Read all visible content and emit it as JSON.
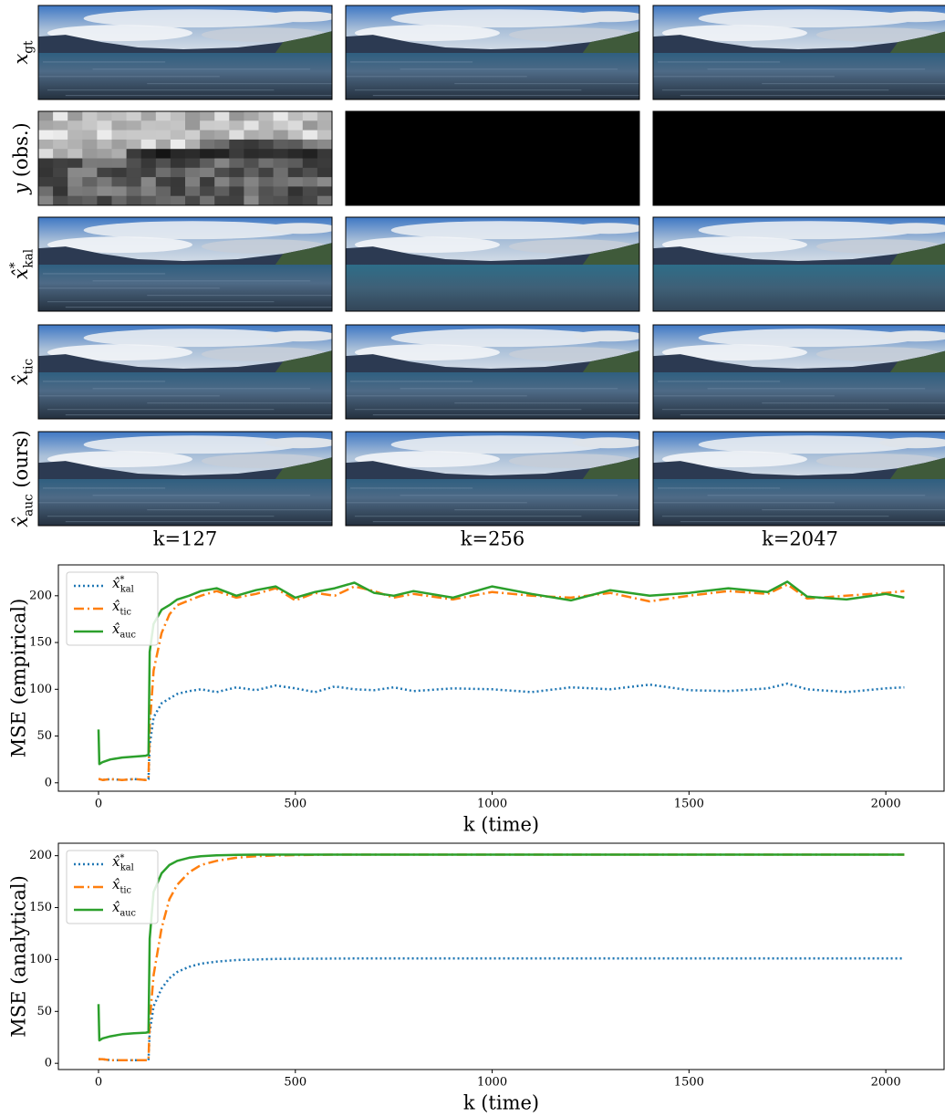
{
  "image_grid": {
    "row_labels": [
      {
        "base": "x",
        "sub": "gt"
      },
      {
        "base": "y",
        "rest": " (obs.)"
      },
      {
        "base": "x̂",
        "sup": "*",
        "sub": "kal"
      },
      {
        "base": "x̂",
        "sub": "tic"
      },
      {
        "base": "x̂",
        "sub": "auc",
        "rest": " (ours)"
      }
    ],
    "column_labels": [
      "k=127",
      "k=256",
      "k=2047"
    ]
  },
  "chart_data": [
    {
      "type": "line",
      "ylabel": "MSE (empirical)",
      "xlabel": "k (time)",
      "x": [
        0,
        2,
        10,
        30,
        60,
        90,
        120,
        127,
        130,
        140,
        160,
        180,
        200,
        230,
        260,
        300,
        350,
        400,
        450,
        500,
        550,
        600,
        650,
        700,
        750,
        800,
        900,
        1000,
        1100,
        1200,
        1300,
        1400,
        1500,
        1600,
        1700,
        1750,
        1800,
        1900,
        2000,
        2047
      ],
      "xlim": [
        -102,
        2148
      ],
      "xticks": [
        0,
        500,
        1000,
        1500,
        2000
      ],
      "ylim": [
        -9,
        233
      ],
      "yticks": [
        0,
        50,
        100,
        150,
        200
      ],
      "legend": "upper left",
      "series": [
        {
          "name": {
            "base": "x̂",
            "sup": "*",
            "sub": "kal"
          },
          "color": "#1f77b4",
          "style": "dotted",
          "values": [
            4,
            4,
            3,
            4,
            3,
            4,
            3,
            4,
            40,
            70,
            85,
            90,
            95,
            98,
            100,
            97,
            102,
            99,
            104,
            101,
            97,
            103,
            100,
            99,
            102,
            98,
            101,
            100,
            97,
            102,
            100,
            105,
            99,
            98,
            101,
            106,
            100,
            97,
            101,
            102
          ]
        },
        {
          "name": {
            "base": "x̂",
            "sub": "tic"
          },
          "color": "#ff7f0e",
          "style": "dashdot",
          "values": [
            4,
            4,
            3,
            4,
            3,
            4,
            3,
            4,
            60,
            120,
            160,
            180,
            190,
            195,
            200,
            205,
            198,
            202,
            208,
            195,
            203,
            200,
            210,
            205,
            198,
            202,
            196,
            204,
            200,
            198,
            203,
            194,
            200,
            205,
            202,
            212,
            197,
            200,
            203,
            205
          ]
        },
        {
          "name": {
            "base": "x̂",
            "sub": "auc"
          },
          "color": "#2ca02c",
          "style": "solid",
          "values": [
            57,
            20,
            22,
            25,
            27,
            28,
            29,
            30,
            140,
            170,
            185,
            190,
            196,
            200,
            205,
            208,
            200,
            206,
            210,
            198,
            204,
            208,
            214,
            203,
            200,
            205,
            198,
            210,
            202,
            195,
            206,
            200,
            203,
            208,
            204,
            215,
            199,
            196,
            202,
            198
          ]
        }
      ]
    },
    {
      "type": "line",
      "ylabel": "MSE (analytical)",
      "xlabel": "k (time)",
      "x": [
        0,
        2,
        10,
        30,
        60,
        90,
        120,
        127,
        130,
        140,
        160,
        180,
        200,
        230,
        260,
        300,
        350,
        400,
        450,
        500,
        550,
        600,
        650,
        700,
        750,
        800,
        900,
        1000,
        1100,
        1200,
        1300,
        1400,
        1500,
        1600,
        1700,
        1750,
        1800,
        1900,
        2000,
        2047
      ],
      "xlim": [
        -102,
        2148
      ],
      "xticks": [
        0,
        500,
        1000,
        1500,
        2000
      ],
      "ylim": [
        -6,
        212
      ],
      "yticks": [
        0,
        50,
        100,
        150,
        200
      ],
      "legend": "upper left",
      "series": [
        {
          "name": {
            "base": "x̂",
            "sup": "*",
            "sub": "kal"
          },
          "color": "#1f77b4",
          "style": "dotted",
          "values": [
            4,
            4,
            4,
            3,
            3,
            3,
            3,
            3,
            30,
            55,
            72,
            82,
            88,
            93,
            96,
            98,
            99.5,
            100,
            100.5,
            100.7,
            100.8,
            100.9,
            101,
            101,
            101,
            101,
            101,
            101,
            101,
            101,
            101,
            101,
            101,
            101,
            101,
            101,
            101,
            101,
            101,
            101
          ]
        },
        {
          "name": {
            "base": "x̂",
            "sub": "tic"
          },
          "color": "#ff7f0e",
          "style": "dashdot",
          "values": [
            4,
            4,
            4,
            3,
            3,
            3,
            3,
            3,
            40,
            85,
            130,
            158,
            172,
            184,
            191,
            195,
            198,
            199.5,
            200.2,
            200.6,
            200.8,
            201,
            201,
            201,
            201,
            201,
            201,
            201,
            201,
            201,
            201,
            201,
            201,
            201,
            201,
            201,
            201,
            201,
            201,
            201
          ]
        },
        {
          "name": {
            "base": "x̂",
            "sub": "auc"
          },
          "color": "#2ca02c",
          "style": "solid",
          "values": [
            57,
            22,
            24,
            26,
            28,
            29,
            29.5,
            30,
            120,
            165,
            183,
            191,
            195,
            198,
            199.5,
            200.3,
            200.8,
            201,
            201,
            201,
            201,
            201,
            201,
            201,
            201,
            201,
            201,
            201,
            201,
            201,
            201,
            201,
            201,
            201,
            201,
            201,
            201,
            201,
            201,
            201
          ]
        }
      ]
    }
  ]
}
